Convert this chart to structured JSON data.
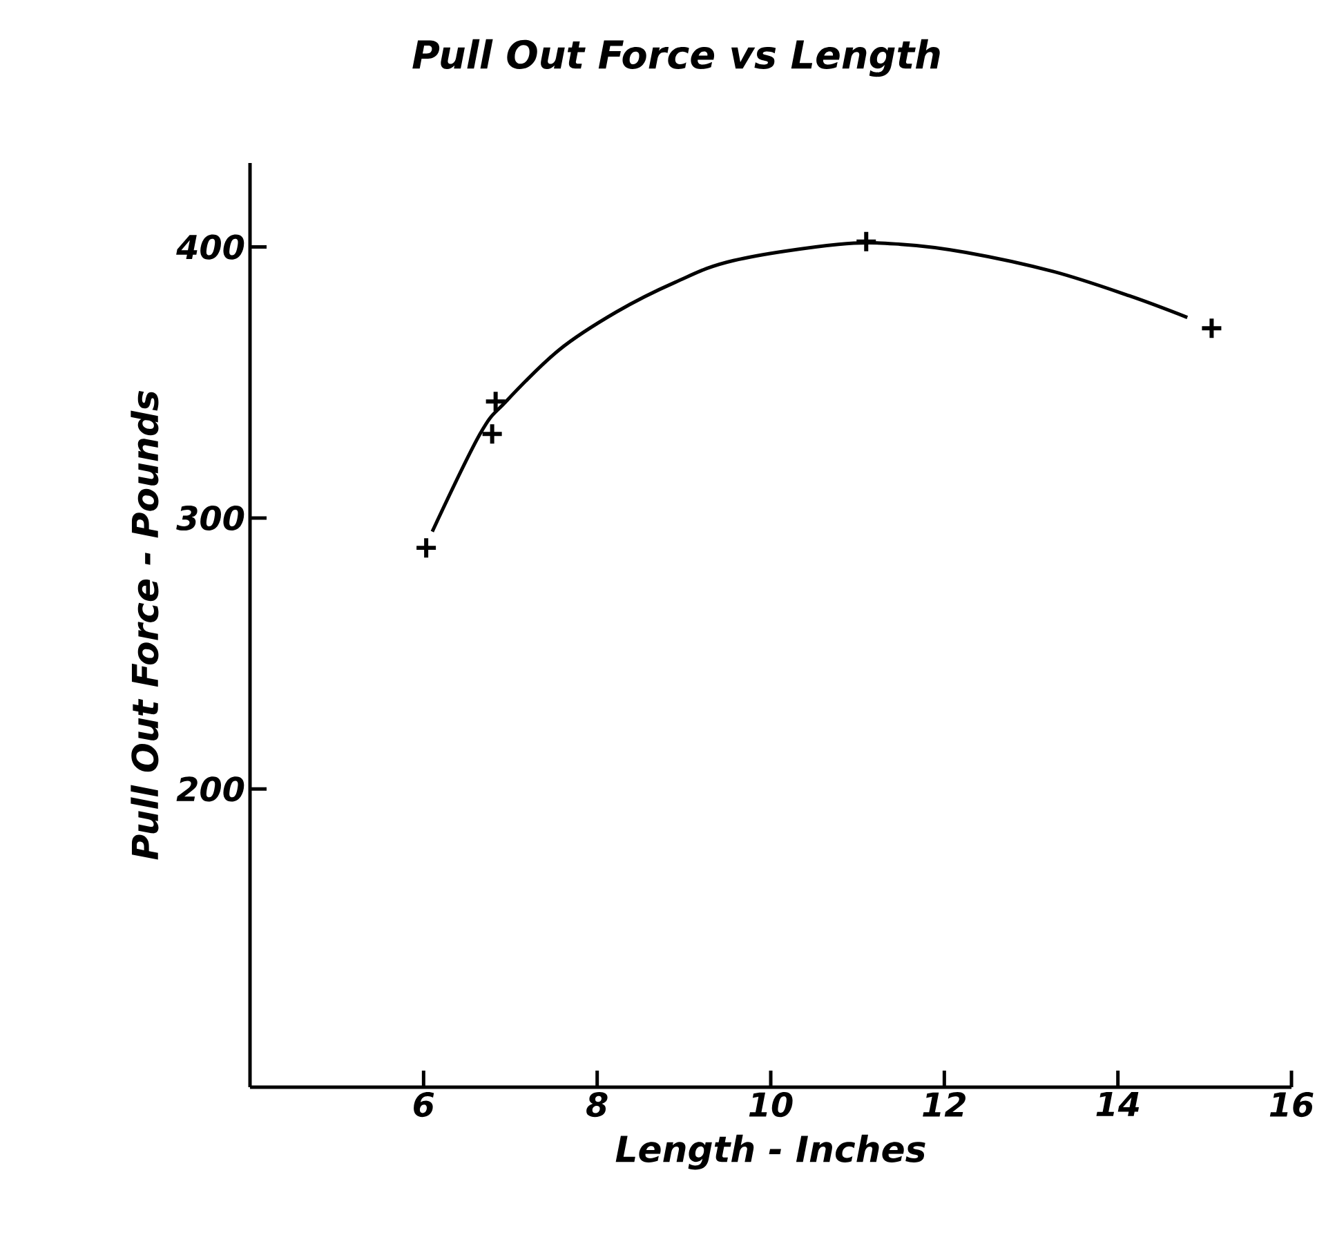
{
  "chart_data": {
    "type": "scatter",
    "title": "Pull Out Force vs Length",
    "xlabel": "Length - Inches",
    "ylabel": "Pull Out Force - Pounds",
    "xlim": [
      4,
      16
    ],
    "xticks": [
      6,
      8,
      10,
      12,
      14,
      16
    ],
    "ylim": [
      90,
      431
    ],
    "yticks": [
      200,
      300,
      400
    ],
    "series": [
      {
        "type": "scatter",
        "color": "#000000",
        "marker": "cross",
        "x": [
          6.03,
          6.79,
          6.83,
          11.1,
          15.08
        ],
        "values": [
          289,
          331,
          343,
          402,
          370
        ]
      },
      {
        "type": "line",
        "color": "#000000",
        "marker": "none",
        "line_style": "solid",
        "x": [
          6.1,
          6.65,
          6.95,
          7.56,
          8.22,
          8.9,
          9.57,
          10.78,
          11.5,
          12.25,
          13.25,
          14.13,
          14.8
        ],
        "values": [
          295,
          331,
          343,
          362,
          376,
          387,
          395,
          401,
          401,
          398,
          391,
          382,
          374
        ]
      }
    ]
  }
}
